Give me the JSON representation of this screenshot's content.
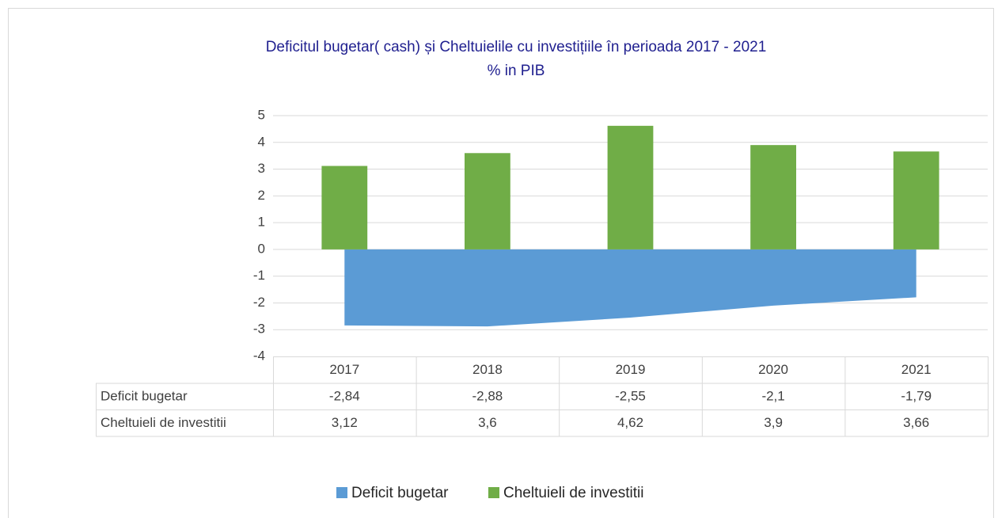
{
  "chart_data": {
    "type": "combo",
    "title": "Deficitul bugetar( cash)  și Cheltuielile cu investițiile în perioada 2017 - 2021",
    "subtitle": "% in PIB",
    "categories": [
      "2017",
      "2018",
      "2019",
      "2020",
      "2021"
    ],
    "series": [
      {
        "name": "Deficit bugetar",
        "type": "area",
        "color": "#5b9bd5",
        "values": [
          -2.84,
          -2.88,
          -2.55,
          -2.1,
          -1.79
        ],
        "value_labels": [
          "-2,84",
          "-2,88",
          "-2,55",
          "-2,1",
          "-1,79"
        ]
      },
      {
        "name": "Cheltuieli de investitii",
        "type": "bar",
        "color": "#70ad47",
        "values": [
          3.12,
          3.6,
          4.62,
          3.9,
          3.66
        ],
        "value_labels": [
          "3,12",
          "3,6",
          "4,62",
          "3,9",
          "3,66"
        ]
      }
    ],
    "ylim": [
      -4,
      5
    ],
    "yticks": [
      5,
      4,
      3,
      2,
      1,
      0,
      -1,
      -2,
      -3,
      -4
    ],
    "grid": true,
    "legend": "bottom",
    "data_table": true
  }
}
